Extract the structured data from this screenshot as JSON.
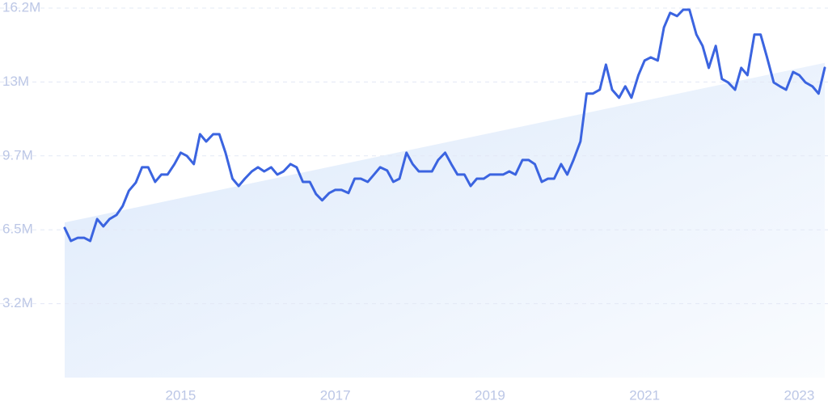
{
  "chart_data": {
    "type": "line",
    "x": [
      2013.5,
      2013.58,
      2013.67,
      2013.75,
      2013.83,
      2013.92,
      2014.0,
      2014.08,
      2014.17,
      2014.25,
      2014.33,
      2014.42,
      2014.5,
      2014.58,
      2014.67,
      2014.75,
      2014.83,
      2014.92,
      2015.0,
      2015.08,
      2015.17,
      2015.25,
      2015.33,
      2015.42,
      2015.5,
      2015.58,
      2015.67,
      2015.75,
      2015.83,
      2015.92,
      2016.0,
      2016.08,
      2016.17,
      2016.25,
      2016.33,
      2016.42,
      2016.5,
      2016.58,
      2016.67,
      2016.75,
      2016.83,
      2016.92,
      2017.0,
      2017.08,
      2017.17,
      2017.25,
      2017.33,
      2017.42,
      2017.5,
      2017.58,
      2017.67,
      2017.75,
      2017.83,
      2017.92,
      2018.0,
      2018.08,
      2018.17,
      2018.25,
      2018.33,
      2018.42,
      2018.5,
      2018.58,
      2018.67,
      2018.75,
      2018.83,
      2018.92,
      2019.0,
      2019.08,
      2019.17,
      2019.25,
      2019.33,
      2019.42,
      2019.5,
      2019.58,
      2019.67,
      2019.75,
      2019.83,
      2019.92,
      2020.0,
      2020.08,
      2020.17,
      2020.25,
      2020.33,
      2020.42,
      2020.5,
      2020.58,
      2020.67,
      2020.75,
      2020.83,
      2020.92,
      2021.0,
      2021.08,
      2021.17,
      2021.25,
      2021.33,
      2021.42,
      2021.5,
      2021.58,
      2021.67,
      2021.75,
      2021.83,
      2021.92,
      2022.0,
      2022.08,
      2022.17,
      2022.25,
      2022.33,
      2022.42,
      2022.5,
      2022.58,
      2022.67,
      2022.75,
      2022.83,
      2022.92,
      2023.0,
      2023.08,
      2023.17,
      2023.25,
      2023.33
    ],
    "series": [
      {
        "color": "#3b64e0",
        "values": [
          6.56,
          5.99,
          6.13,
          6.13,
          5.99,
          6.95,
          6.63,
          6.95,
          7.13,
          7.52,
          8.19,
          8.55,
          9.22,
          9.22,
          8.58,
          8.9,
          8.9,
          9.36,
          9.86,
          9.72,
          9.36,
          10.67,
          10.35,
          10.67,
          10.67,
          9.86,
          8.72,
          8.4,
          8.72,
          9.04,
          9.22,
          9.04,
          9.22,
          8.9,
          9.04,
          9.36,
          9.22,
          8.58,
          8.58,
          8.05,
          7.77,
          8.09,
          8.23,
          8.23,
          8.09,
          8.72,
          8.72,
          8.58,
          8.9,
          9.22,
          9.08,
          8.58,
          8.72,
          9.86,
          9.36,
          9.04,
          9.04,
          9.04,
          9.54,
          9.86,
          9.36,
          8.9,
          8.9,
          8.4,
          8.72,
          8.72,
          8.9,
          8.9,
          8.9,
          9.04,
          8.9,
          9.54,
          9.54,
          9.36,
          8.58,
          8.72,
          8.72,
          9.36,
          8.9,
          9.54,
          10.35,
          12.45,
          12.45,
          12.62,
          13.72,
          12.62,
          12.27,
          12.77,
          12.27,
          13.26,
          13.9,
          14.04,
          13.9,
          15.35,
          15.99,
          15.85,
          16.13,
          16.13,
          15.04,
          14.54,
          13.58,
          14.54,
          13.09,
          12.94,
          12.62,
          13.58,
          13.26,
          15.04,
          15.04,
          14.08,
          12.94,
          12.77,
          12.62,
          13.4,
          13.26,
          12.94,
          12.77,
          12.45,
          13.58
        ]
      }
    ],
    "trend": {
      "color": "#dce9fb",
      "x": [
        2013.5,
        2023.33
      ],
      "values": [
        6.8,
        13.8
      ]
    },
    "xlim": [
      2013.5,
      2023.33
    ],
    "xticks": [
      2015,
      2017,
      2019,
      2021,
      2023
    ],
    "ylim": [
      0,
      16.2
    ],
    "yticks": [
      {
        "value": 3.24,
        "label": "3.2M"
      },
      {
        "value": 6.48,
        "label": "6.5M"
      },
      {
        "value": 9.72,
        "label": "9.7M"
      },
      {
        "value": 12.96,
        "label": "13M"
      },
      {
        "value": 16.2,
        "label": "16.2M"
      }
    ],
    "grid": true
  }
}
